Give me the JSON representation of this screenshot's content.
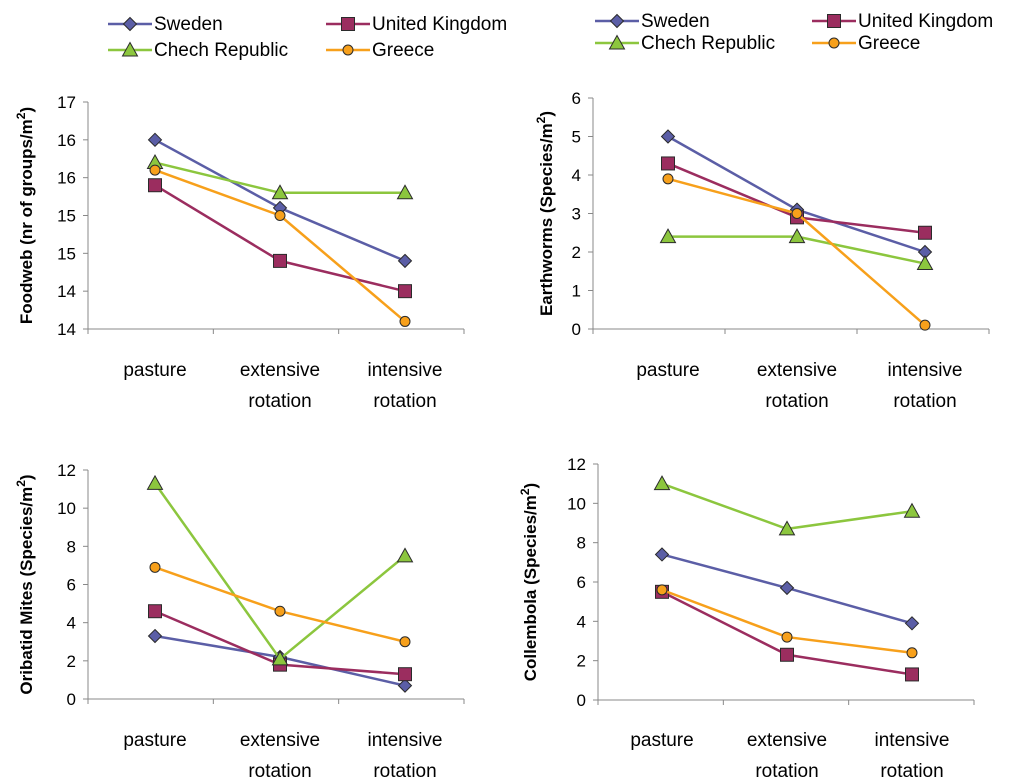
{
  "colors": {
    "Sweden": "#5b5ea6",
    "United Kingdom": "#9b2d5f",
    "Chech Republic": "#8cc63e",
    "Greece": "#f7a01b"
  },
  "chart_data": [
    {
      "type": "line",
      "title": "",
      "ylabel": "Foodweb (nr of groups/m2)",
      "ylabel_sup": "2",
      "ylabel_main": "Foodweb (nr of groups/m",
      "ylabel_tail": ")",
      "categories": [
        [
          "pasture"
        ],
        [
          "extensive",
          "rotation"
        ],
        [
          "intensive",
          "rotation"
        ]
      ],
      "y_ticks": [
        "17",
        "16",
        "16",
        "15",
        "15",
        "14",
        "14"
      ],
      "ylim": [
        14,
        17
      ],
      "series": [
        {
          "name": "Sweden",
          "marker": "diamond",
          "values": [
            16.5,
            15.6,
            14.9
          ]
        },
        {
          "name": "United Kingdom",
          "marker": "square",
          "values": [
            15.9,
            14.9,
            14.5
          ]
        },
        {
          "name": "Chech Republic",
          "marker": "triangle",
          "values": [
            16.2,
            15.8,
            15.8
          ]
        },
        {
          "name": "Greece",
          "marker": "circle",
          "values": [
            16.1,
            15.5,
            14.1
          ]
        }
      ],
      "legend": [
        [
          {
            "name": "Sweden",
            "marker": "diamond"
          },
          {
            "name": "United Kingdom",
            "marker": "square"
          }
        ],
        [
          {
            "name": "Chech Republic",
            "marker": "triangle"
          },
          {
            "name": "Greece",
            "marker": "circle"
          }
        ]
      ]
    },
    {
      "type": "line",
      "title": "",
      "ylabel": "Earthworms (Species/m2)",
      "ylabel_sup": "2",
      "ylabel_main": "Earthworms (Species/m",
      "ylabel_tail": ")",
      "categories": [
        [
          "pasture"
        ],
        [
          "extensive",
          "rotation"
        ],
        [
          "intensive",
          "rotation"
        ]
      ],
      "y_ticks": [
        "6",
        "5",
        "4",
        "3",
        "2",
        "1",
        "0"
      ],
      "ylim": [
        0,
        6
      ],
      "series": [
        {
          "name": "Sweden",
          "marker": "diamond",
          "values": [
            5.0,
            3.1,
            2.0
          ]
        },
        {
          "name": "United Kingdom",
          "marker": "square",
          "values": [
            4.3,
            2.9,
            2.5
          ]
        },
        {
          "name": "Chech Republic",
          "marker": "triangle",
          "values": [
            2.4,
            2.4,
            1.7
          ]
        },
        {
          "name": "Greece",
          "marker": "circle",
          "values": [
            3.9,
            3.0,
            0.1
          ]
        }
      ],
      "legend": [
        [
          {
            "name": "Sweden",
            "marker": "diamond"
          },
          {
            "name": "United Kingdom",
            "marker": "square"
          }
        ],
        [
          {
            "name": "Chech Republic",
            "marker": "triangle"
          },
          {
            "name": "Greece",
            "marker": "circle"
          }
        ]
      ]
    },
    {
      "type": "line",
      "title": "",
      "ylabel": "Oribatid Mites (Species/m2)",
      "ylabel_sup": "2",
      "ylabel_main": "Oribatid Mites (Species/m",
      "ylabel_tail": ")",
      "categories": [
        [
          "pasture"
        ],
        [
          "extensive",
          "rotation"
        ],
        [
          "intensive",
          "rotation"
        ]
      ],
      "y_ticks": [
        "12",
        "10",
        "8",
        "6",
        "4",
        "2",
        "0"
      ],
      "ylim": [
        0,
        12
      ],
      "series": [
        {
          "name": "Sweden",
          "marker": "diamond",
          "values": [
            3.3,
            2.2,
            0.7
          ]
        },
        {
          "name": "United Kingdom",
          "marker": "square",
          "values": [
            4.6,
            1.8,
            1.3
          ]
        },
        {
          "name": "Chech Republic",
          "marker": "triangle",
          "values": [
            11.3,
            2.1,
            7.5
          ]
        },
        {
          "name": "Greece",
          "marker": "circle",
          "values": [
            6.9,
            4.6,
            3.0
          ]
        }
      ],
      "legend": []
    },
    {
      "type": "line",
      "title": "",
      "ylabel": "Collembola (Species/m2)",
      "ylabel_sup": "2",
      "ylabel_main": "Collembola (Species/m",
      "ylabel_tail": ")",
      "categories": [
        [
          "pasture"
        ],
        [
          "extensive",
          "rotation"
        ],
        [
          "intensive",
          "rotation"
        ]
      ],
      "y_ticks": [
        "12",
        "10",
        "8",
        "6",
        "4",
        "2",
        "0"
      ],
      "ylim": [
        0,
        12
      ],
      "series": [
        {
          "name": "Sweden",
          "marker": "diamond",
          "values": [
            7.4,
            5.7,
            3.9
          ]
        },
        {
          "name": "United Kingdom",
          "marker": "square",
          "values": [
            5.5,
            2.3,
            1.3
          ]
        },
        {
          "name": "Chech Republic",
          "marker": "triangle",
          "values": [
            11.0,
            8.7,
            9.6
          ]
        },
        {
          "name": "Greece",
          "marker": "circle",
          "values": [
            5.6,
            3.2,
            2.4
          ]
        }
      ],
      "legend": []
    }
  ]
}
